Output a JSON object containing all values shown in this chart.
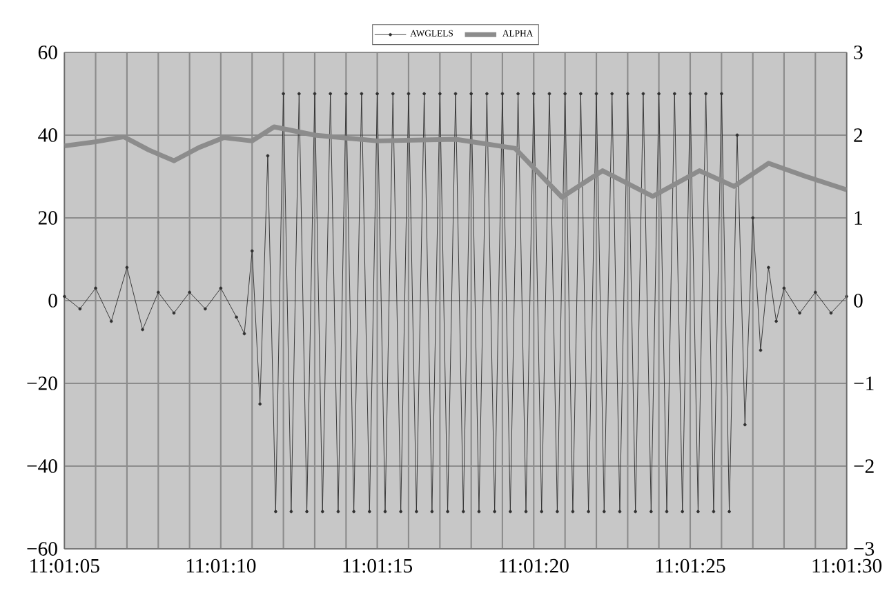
{
  "chart_data": {
    "type": "line",
    "legend": "top",
    "grid": true,
    "xlim": [
      11.018056,
      11.025
    ],
    "xticks": [
      {
        "value": 11.018056,
        "label": "11:01:05"
      },
      {
        "value": 11.018333,
        "label": null
      },
      {
        "value": 11.018611,
        "label": null
      },
      {
        "value": 11.018889,
        "label": null
      },
      {
        "value": 11.019167,
        "label": null
      },
      {
        "value": 11.019444,
        "label": "11:01:10"
      },
      {
        "value": 11.019722,
        "label": null
      },
      {
        "value": 11.02,
        "label": null
      },
      {
        "value": 11.020278,
        "label": null
      },
      {
        "value": 11.020556,
        "label": null
      },
      {
        "value": 11.020833,
        "label": "11:01:15"
      },
      {
        "value": 11.021111,
        "label": null
      },
      {
        "value": 11.021389,
        "label": null
      },
      {
        "value": 11.021667,
        "label": null
      },
      {
        "value": 11.021944,
        "label": null
      },
      {
        "value": 11.022222,
        "label": "11:01:20"
      },
      {
        "value": 11.0225,
        "label": null
      },
      {
        "value": 11.022778,
        "label": null
      },
      {
        "value": 11.023056,
        "label": null
      },
      {
        "value": 11.023333,
        "label": null
      },
      {
        "value": 11.023611,
        "label": "11:01:25"
      },
      {
        "value": 11.023889,
        "label": null
      },
      {
        "value": 11.024167,
        "label": null
      },
      {
        "value": 11.024444,
        "label": null
      },
      {
        "value": 11.024722,
        "label": null
      },
      {
        "value": 11.025,
        "label": "11:01:30"
      }
    ],
    "ylim": [
      -60,
      60
    ],
    "yticks": [
      {
        "value": -60,
        "label": "−60"
      },
      {
        "value": -40,
        "label": "−40"
      },
      {
        "value": -20,
        "label": "−20"
      },
      0,
      20,
      40,
      60
    ],
    "y2lim": [
      -3,
      3
    ],
    "y2ticks": [
      {
        "value": -3,
        "label": "−3"
      },
      {
        "value": -2,
        "label": "−2"
      },
      {
        "value": -1,
        "label": "−1"
      },
      0,
      1,
      2,
      3
    ],
    "series": [
      {
        "name": "AWGLELS",
        "color": "#303030",
        "marker": "circle",
        "x": [
          11.018056,
          11.018194,
          11.018333,
          11.018472,
          11.018611,
          11.01875,
          11.018889,
          11.019028,
          11.019167,
          11.019306,
          11.019444,
          11.019583,
          11.019653,
          11.019722,
          11.019792,
          11.019861,
          11.019931,
          11.02,
          11.020069,
          11.020139,
          11.020208,
          11.020278,
          11.020347,
          11.020417,
          11.020486,
          11.020556,
          11.020625,
          11.020694,
          11.020764,
          11.020833,
          11.020903,
          11.020972,
          11.021042,
          11.021111,
          11.021181,
          11.02125,
          11.021319,
          11.021389,
          11.021458,
          11.021528,
          11.021597,
          11.021667,
          11.021736,
          11.021806,
          11.021875,
          11.021944,
          11.022014,
          11.022083,
          11.022153,
          11.022222,
          11.022292,
          11.022361,
          11.022431,
          11.0225,
          11.022569,
          11.022639,
          11.022708,
          11.022778,
          11.022847,
          11.022917,
          11.022986,
          11.023056,
          11.023125,
          11.023194,
          11.023264,
          11.023333,
          11.023403,
          11.023472,
          11.023542,
          11.023611,
          11.023681,
          11.02375,
          11.023819,
          11.023889,
          11.023958,
          11.024028,
          11.024097,
          11.024167,
          11.024236,
          11.024306,
          11.024375,
          11.024444,
          11.024583,
          11.024722,
          11.024861,
          11.025
        ],
        "values": [
          1,
          -2,
          3,
          -5,
          8,
          -7,
          2,
          -3,
          2,
          -2,
          3,
          -4,
          -8,
          12,
          -25,
          35,
          -51,
          50,
          -51,
          50,
          -51,
          50,
          -51,
          50,
          -51,
          50,
          -51,
          50,
          -51,
          50,
          -51,
          50,
          -51,
          50,
          -51,
          50,
          -51,
          50,
          -51,
          50,
          -51,
          50,
          -51,
          50,
          -51,
          50,
          -51,
          50,
          -51,
          50,
          -51,
          50,
          -51,
          50,
          -51,
          50,
          -51,
          50,
          -51,
          50,
          -51,
          50,
          -51,
          50,
          -51,
          50,
          -51,
          50,
          -51,
          50,
          -51,
          50,
          -51,
          50,
          -51,
          40,
          -30,
          20,
          -12,
          8,
          -5,
          3,
          -3,
          2,
          -3,
          1
        ]
      },
      {
        "name": "ALPHA",
        "color": "#8c8c8c",
        "axis": "y2",
        "x": [
          11.018056,
          11.018333,
          11.018583,
          11.018806,
          11.019028,
          11.01925,
          11.019472,
          11.019722,
          11.019917,
          11.020278,
          11.020833,
          11.021528,
          11.022056,
          11.022472,
          11.022833,
          11.023278,
          11.023694,
          11.024,
          11.024306,
          11.024639,
          11.025
        ],
        "values": [
          1.87,
          1.92,
          1.98,
          1.82,
          1.69,
          1.85,
          1.97,
          1.93,
          2.1,
          2.0,
          1.93,
          1.95,
          1.84,
          1.25,
          1.57,
          1.26,
          1.57,
          1.38,
          1.66,
          1.5,
          1.34
        ]
      }
    ]
  }
}
